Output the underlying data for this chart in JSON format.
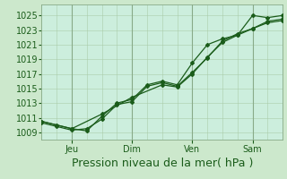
{
  "bg_color": "#cce8cc",
  "plot_bg_color": "#cceedd",
  "grid_color_minor": "#aaccaa",
  "grid_color_major": "#88aa88",
  "line_color": "#1a5c1a",
  "xlabel": "Pression niveau de la mer( hPa )",
  "yticks": [
    1009,
    1011,
    1013,
    1015,
    1017,
    1019,
    1021,
    1023,
    1025
  ],
  "ylim": [
    1008.0,
    1026.5
  ],
  "xlim": [
    0,
    96
  ],
  "xtick_positions": [
    12,
    36,
    60,
    84
  ],
  "xtick_labels": [
    "Jeu",
    "Dim",
    "Ven",
    "Sam"
  ],
  "vlines": [
    12,
    36,
    60,
    84
  ],
  "series1_x": [
    0,
    6,
    12,
    18,
    24,
    30,
    36,
    42,
    48,
    54,
    60,
    66,
    72,
    78,
    84,
    90,
    96
  ],
  "series1_y": [
    1010.3,
    1009.8,
    1009.3,
    1009.5,
    1010.8,
    1012.8,
    1013.2,
    1015.3,
    1015.8,
    1015.3,
    1017.2,
    1019.2,
    1021.5,
    1022.5,
    1023.2,
    1024.2,
    1024.5
  ],
  "series2_x": [
    0,
    6,
    12,
    18,
    24,
    30,
    36,
    42,
    48,
    54,
    60,
    66,
    72,
    78,
    84,
    90,
    96
  ],
  "series2_y": [
    1010.5,
    1010.0,
    1009.5,
    1009.2,
    1011.2,
    1013.0,
    1013.5,
    1015.5,
    1016.0,
    1015.5,
    1018.5,
    1021.0,
    1021.8,
    1022.3,
    1025.0,
    1024.7,
    1025.0
  ],
  "series3_x": [
    0,
    12,
    24,
    36,
    48,
    54,
    60,
    66,
    72,
    78,
    84,
    90,
    96
  ],
  "series3_y": [
    1010.5,
    1009.5,
    1011.5,
    1013.8,
    1015.5,
    1015.2,
    1017.0,
    1019.3,
    1021.3,
    1022.3,
    1023.2,
    1024.0,
    1024.3
  ],
  "xlabel_fontsize": 9,
  "tick_fontsize": 7,
  "marker_size": 2.0,
  "line_width": 0.9
}
